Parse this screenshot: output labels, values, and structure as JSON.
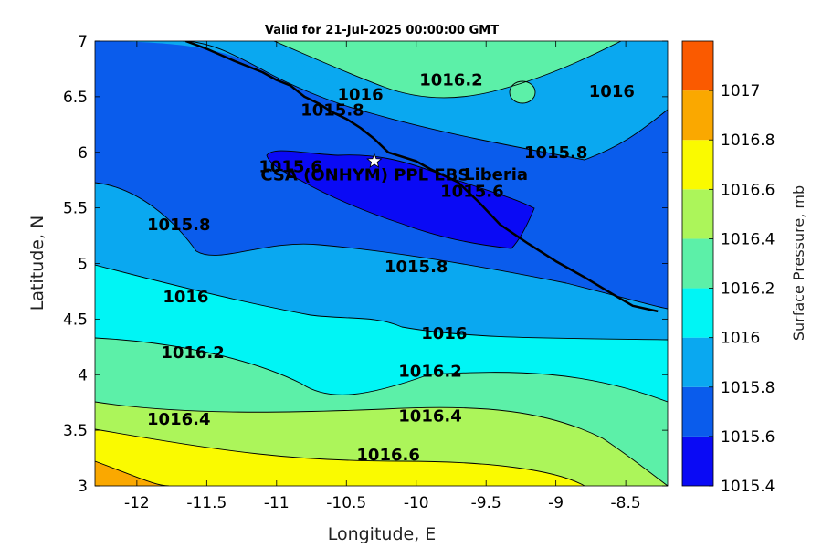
{
  "chart_data": {
    "type": "filled-contour",
    "title": "Valid for 21-Jul-2025 00:00:00 GMT",
    "xlabel": "Longitude, E",
    "ylabel": "Latitude, N",
    "xlim": [
      -12.3,
      -8.2
    ],
    "ylim": [
      3,
      7
    ],
    "xticks": [
      "-12",
      "-11.5",
      "-11",
      "-10.5",
      "-10",
      "-9.5",
      "-9",
      "-8.5"
    ],
    "xtick_values": [
      -12,
      -11.5,
      -11,
      -10.5,
      -10,
      -9.5,
      -9,
      -8.5
    ],
    "yticks": [
      "3",
      "3.5",
      "4",
      "4.5",
      "5",
      "5.5",
      "6",
      "6.5",
      "7"
    ],
    "ytick_values": [
      3,
      3.5,
      4,
      4.5,
      5,
      5.5,
      6,
      6.5,
      7
    ],
    "colorbar": {
      "label": "Surface Pressure, mb",
      "ticks": [
        "1015.4",
        "1015.6",
        "1015.8",
        "1016",
        "1016.2",
        "1016.4",
        "1016.6",
        "1016.8",
        "1017"
      ],
      "bands": [
        {
          "from": 1015.4,
          "to": 1015.6,
          "color": "#0a0af5"
        },
        {
          "from": 1015.6,
          "to": 1015.8,
          "color": "#0a5cec"
        },
        {
          "from": 1015.8,
          "to": 1016.0,
          "color": "#0aa8f0"
        },
        {
          "from": 1016.0,
          "to": 1016.2,
          "color": "#00f5f5"
        },
        {
          "from": 1016.2,
          "to": 1016.4,
          "color": "#5cf0a8"
        },
        {
          "from": 1016.4,
          "to": 1016.6,
          "color": "#acf55a"
        },
        {
          "from": 1016.6,
          "to": 1016.8,
          "color": "#fafa00"
        },
        {
          "from": 1016.8,
          "to": 1017.0,
          "color": "#faa800"
        },
        {
          "from": 1017.0,
          "to": 1017.2,
          "color": "#fa5a00"
        }
      ]
    },
    "contour_labels": [
      {
        "text": "1016.2",
        "lon": -9.75,
        "lat": 6.65
      },
      {
        "text": "1016",
        "lon": -8.6,
        "lat": 6.55
      },
      {
        "text": "1016",
        "lon": -10.4,
        "lat": 6.52
      },
      {
        "text": "1015.8",
        "lon": -10.6,
        "lat": 6.38
      },
      {
        "text": "1015.8",
        "lon": -9.0,
        "lat": 6.0
      },
      {
        "text": "1015.6",
        "lon": -10.9,
        "lat": 5.87
      },
      {
        "text": "1015.6",
        "lon": -9.6,
        "lat": 5.65
      },
      {
        "text": "1015.8",
        "lon": -11.7,
        "lat": 5.35
      },
      {
        "text": "1015.8",
        "lon": -10.0,
        "lat": 4.97
      },
      {
        "text": "1016",
        "lon": -11.65,
        "lat": 4.7
      },
      {
        "text": "1016",
        "lon": -9.8,
        "lat": 4.37
      },
      {
        "text": "1016.2",
        "lon": -11.6,
        "lat": 4.2
      },
      {
        "text": "1016.2",
        "lon": -9.9,
        "lat": 4.03
      },
      {
        "text": "1016.4",
        "lon": -11.7,
        "lat": 3.6
      },
      {
        "text": "1016.4",
        "lon": -9.9,
        "lat": 3.63
      },
      {
        "text": "1016.6",
        "lon": -10.2,
        "lat": 3.28
      }
    ],
    "site_marker": {
      "label": "CSA (ONHYM) PPL EBS",
      "lon": -10.3,
      "lat": 5.92,
      "symbol": "star"
    },
    "region_label": {
      "text": "Liberia",
      "lon": -9.2,
      "lat": 5.8
    },
    "coastline": [
      [
        -11.65,
        7.0
      ],
      [
        -11.5,
        6.93
      ],
      [
        -11.3,
        6.82
      ],
      [
        -11.1,
        6.72
      ],
      [
        -11.0,
        6.65
      ],
      [
        -10.9,
        6.6
      ],
      [
        -10.8,
        6.5
      ],
      [
        -10.7,
        6.44
      ],
      [
        -10.6,
        6.36
      ],
      [
        -10.5,
        6.3
      ],
      [
        -10.4,
        6.22
      ],
      [
        -10.3,
        6.12
      ],
      [
        -10.2,
        6.0
      ],
      [
        -10.0,
        5.92
      ],
      [
        -9.9,
        5.85
      ],
      [
        -9.7,
        5.73
      ],
      [
        -9.55,
        5.55
      ],
      [
        -9.4,
        5.35
      ],
      [
        -9.2,
        5.18
      ],
      [
        -9.0,
        5.02
      ],
      [
        -8.8,
        4.88
      ],
      [
        -8.6,
        4.73
      ],
      [
        -8.45,
        4.62
      ],
      [
        -8.27,
        4.57
      ]
    ]
  }
}
